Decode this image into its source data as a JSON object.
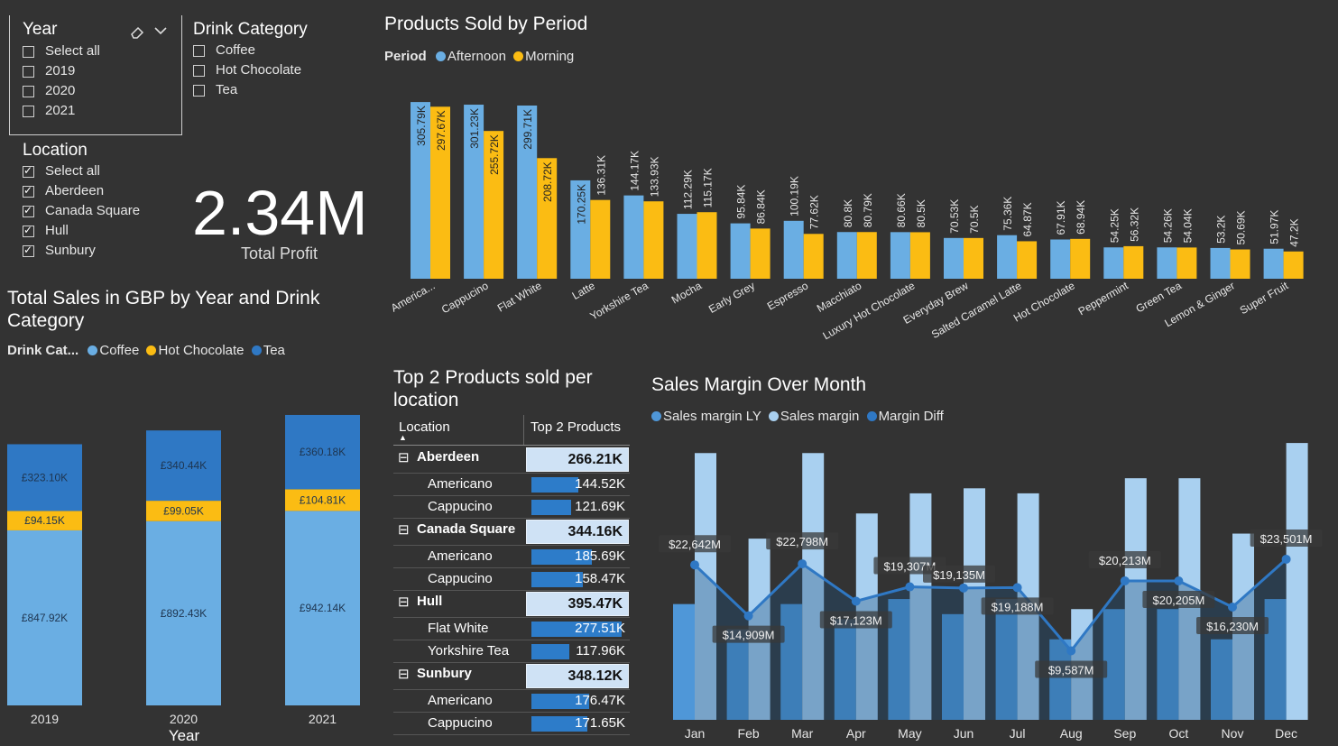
{
  "slicers": {
    "year": {
      "title": "Year",
      "options": [
        {
          "label": "Select all",
          "checked": false
        },
        {
          "label": "2019",
          "checked": false
        },
        {
          "label": "2020",
          "checked": false
        },
        {
          "label": "2021",
          "checked": false
        }
      ]
    },
    "drink": {
      "title": "Drink Category",
      "options": [
        {
          "label": "Coffee",
          "checked": false
        },
        {
          "label": "Hot Chocolate",
          "checked": false
        },
        {
          "label": "Tea",
          "checked": false
        }
      ]
    },
    "location": {
      "title": "Location",
      "options": [
        {
          "label": "Select all",
          "checked": true
        },
        {
          "label": "Aberdeen",
          "checked": true
        },
        {
          "label": "Canada Square",
          "checked": true
        },
        {
          "label": "Hull",
          "checked": true
        },
        {
          "label": "Sunbury",
          "checked": true
        }
      ]
    }
  },
  "kpi": {
    "value": "2.34M",
    "label": "Total Profit"
  },
  "products_chart": {
    "title": "Products Sold by Period",
    "legend_title": "Period",
    "chart_data": {
      "type": "bar",
      "categories": [
        "America...",
        "Cappucino",
        "Flat White",
        "Latte",
        "Yorkshire Tea",
        "Mocha",
        "Early Grey",
        "Espresso",
        "Macchiato",
        "Luxury Hot Chocolate",
        "Everyday Brew",
        "Salted Caramel Latte",
        "Hot Chocolate",
        "Peppermint",
        "Green Tea",
        "Lemon & Ginger",
        "Super Fruit"
      ],
      "series": [
        {
          "name": "Afternoon",
          "color": "#6aaee3",
          "values": [
            305.79,
            301.23,
            299.71,
            170.25,
            144.17,
            112.29,
            95.84,
            100.19,
            80.8,
            80.66,
            70.53,
            75.36,
            67.91,
            54.25,
            54.26,
            53.2,
            51.97
          ],
          "labels": [
            "305.79K",
            "301.23K",
            "299.71K",
            "170.25K",
            "144.17K",
            "112.29K",
            "95.84K",
            "100.19K",
            "80.8K",
            "80.66K",
            "70.53K",
            "75.36K",
            "67.91K",
            "54.25K",
            "54.26K",
            "53.2K",
            "51.97K"
          ]
        },
        {
          "name": "Morning",
          "color": "#fbbc13",
          "values": [
            297.67,
            255.72,
            208.72,
            136.31,
            133.93,
            115.17,
            86.84,
            77.62,
            80.79,
            80.5,
            70.5,
            64.87,
            68.94,
            56.32,
            54.04,
            50.69,
            47.2
          ],
          "labels": [
            "297.67K",
            "255.72K",
            "208.72K",
            "136.31K",
            "133.93K",
            "115.17K",
            "86.84K",
            "77.62K",
            "80.79K",
            "80.5K",
            "70.5K",
            "64.87K",
            "68.94K",
            "56.32K",
            "54.04K",
            "50.69K",
            "47.2K"
          ]
        }
      ]
    }
  },
  "sales_chart": {
    "title": "Total Sales in GBP by Year and Drink Category",
    "legend_title": "Drink Cat...",
    "xlabel": "Year",
    "chart_data": {
      "type": "bar",
      "stacked": true,
      "categories": [
        "2019",
        "2020",
        "2021"
      ],
      "series": [
        {
          "name": "Coffee",
          "color": "#6aaee3",
          "values": [
            847.92,
            892.43,
            942.14
          ],
          "labels": [
            "£847.92K",
            "£892.43K",
            "£942.14K"
          ]
        },
        {
          "name": "Hot Chocolate",
          "color": "#fbbc13",
          "values": [
            94.15,
            99.05,
            104.81
          ],
          "labels": [
            "£94.15K",
            "£99.05K",
            "£104.81K"
          ]
        },
        {
          "name": "Tea",
          "color": "#2f78c4",
          "values": [
            323.1,
            340.44,
            360.18
          ],
          "labels": [
            "£323.10K",
            "£340.44K",
            "£360.18K"
          ]
        }
      ]
    }
  },
  "top_table": {
    "title": "Top 2 Products sold per location",
    "col1": "Location",
    "col2": "Top 2 Products",
    "groups": [
      {
        "name": "Aberdeen",
        "total": "266.21K",
        "items": [
          {
            "name": "Americano",
            "value": 144.52,
            "label": "144.52K"
          },
          {
            "name": "Cappucino",
            "value": 121.69,
            "label": "121.69K"
          }
        ]
      },
      {
        "name": "Canada Square",
        "total": "344.16K",
        "items": [
          {
            "name": "Americano",
            "value": 185.69,
            "label": "185.69K"
          },
          {
            "name": "Cappucino",
            "value": 158.47,
            "label": "158.47K"
          }
        ]
      },
      {
        "name": "Hull",
        "total": "395.47K",
        "items": [
          {
            "name": "Flat White",
            "value": 277.51,
            "label": "277.51K"
          },
          {
            "name": "Yorkshire Tea",
            "value": 117.96,
            "label": "117.96K"
          }
        ]
      },
      {
        "name": "Sunbury",
        "total": "348.12K",
        "items": [
          {
            "name": "Americano",
            "value": 176.47,
            "label": "176.47K"
          },
          {
            "name": "Cappucino",
            "value": 171.65,
            "label": "171.65K"
          }
        ]
      }
    ]
  },
  "margin_chart": {
    "title": "Sales Margin Over Month",
    "chart_data": {
      "type": "bar",
      "categories": [
        "Jan",
        "Feb",
        "Mar",
        "Apr",
        "May",
        "Jun",
        "Jul",
        "Aug",
        "Sep",
        "Oct",
        "Nov",
        "Dec"
      ],
      "series": [
        {
          "name": "Sales margin LY",
          "color": "#4f97d8",
          "values": [
            23,
            18,
            23,
            20,
            24,
            21,
            24,
            16,
            22,
            22,
            16,
            24
          ]
        },
        {
          "name": "Sales margin",
          "color": "#a9d0f0",
          "values": [
            53,
            36,
            53,
            41,
            45,
            46,
            45,
            22,
            48,
            48,
            37,
            55
          ]
        },
        {
          "name": "Margin Diff",
          "color": "#2f78c4",
          "values": [
            22.642,
            14.909,
            22.798,
            17.123,
            19.307,
            19.135,
            19.188,
            9.587,
            20.213,
            20.205,
            16.23,
            23.501
          ],
          "labels": [
            "$22,642M",
            "$14,909M",
            "$22,798M",
            "$17,123M",
            "$19,307M",
            "$19,135M",
            "$19,188M",
            "$9,587M",
            "$20,213M",
            "$20,205M",
            "$16,230M",
            "$23,501M"
          ]
        }
      ]
    }
  }
}
